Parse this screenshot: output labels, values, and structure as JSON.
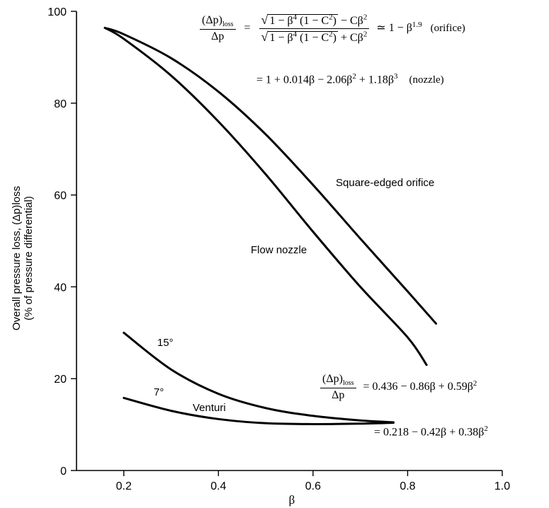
{
  "chart_data": {
    "type": "line",
    "xlabel": "β",
    "ylabel": "Overall pressure loss, (Δp)loss",
    "ylabel_line2": "(% of pressure differential)",
    "xlim": [
      0.1,
      1.0
    ],
    "ylim": [
      0,
      100
    ],
    "xticks": [
      0.2,
      0.4,
      0.6,
      0.8,
      1.0
    ],
    "xtick_labels": [
      "0.2",
      "0.4",
      "0.6",
      "0.8",
      "1.0"
    ],
    "yticks": [
      0,
      20,
      40,
      60,
      80,
      100
    ],
    "ytick_labels": [
      "0",
      "20",
      "40",
      "60",
      "80",
      "100"
    ],
    "grid": false,
    "series": [
      {
        "name": "Square-edged orifice",
        "x": [
          0.16,
          0.2,
          0.3,
          0.4,
          0.5,
          0.6,
          0.7,
          0.8,
          0.86
        ],
        "y": [
          96.4,
          95.0,
          89.8,
          82.5,
          73.2,
          62.2,
          50.5,
          39.0,
          32.0
        ]
      },
      {
        "name": "Flow nozzle",
        "x": [
          0.16,
          0.2,
          0.3,
          0.4,
          0.5,
          0.6,
          0.7,
          0.8,
          0.84
        ],
        "y": [
          96.4,
          94.0,
          86.0,
          76.0,
          64.5,
          52.0,
          40.0,
          29.0,
          23.0
        ]
      },
      {
        "name": "15°",
        "x": [
          0.2,
          0.3,
          0.4,
          0.5,
          0.6,
          0.7,
          0.77
        ],
        "y": [
          30.0,
          22.0,
          16.7,
          13.6,
          11.9,
          10.9,
          10.5
        ]
      },
      {
        "name": "7°",
        "x": [
          0.2,
          0.3,
          0.4,
          0.5,
          0.6,
          0.7,
          0.77
        ],
        "y": [
          15.8,
          13.0,
          11.2,
          10.3,
          10.1,
          10.2,
          10.4
        ]
      }
    ],
    "annotations": {
      "orifice_label": "Square-edged orifice",
      "nozzle_label": "Flow nozzle",
      "venturi_label": "Venturi",
      "angle_15": "15°",
      "angle_7": "7°",
      "eq1_num_text": "1 − β",
      "eq1_num_sup": "4",
      "eq1_num_mid": " (1 − C",
      "eq1_num_sup2": "2",
      "eq1_num_end": ") − Cβ",
      "eq1_num_sup3": "2",
      "eq1_den_end": ") + Cβ",
      "lhs_num": "(Δp)",
      "lhs_sub": "loss",
      "lhs_den": "Δp",
      "eq1_approx": "≃ 1 − β",
      "eq1_approx_sup": "1.9",
      "eq1_tag": "(orifice)",
      "eq2_text": "= 1 + 0.014β − 2.06β",
      "eq2_sup1": "2",
      "eq2_mid": " + 1.18β",
      "eq2_sup2": "3",
      "eq2_tag": "(nozzle)",
      "eq3_rhs": "= 0.436 − 0.86β + 0.59β",
      "eq3_sup": "2",
      "eq4_rhs": "= 0.218 − 0.42β + 0.38β",
      "eq4_sup": "2"
    }
  }
}
